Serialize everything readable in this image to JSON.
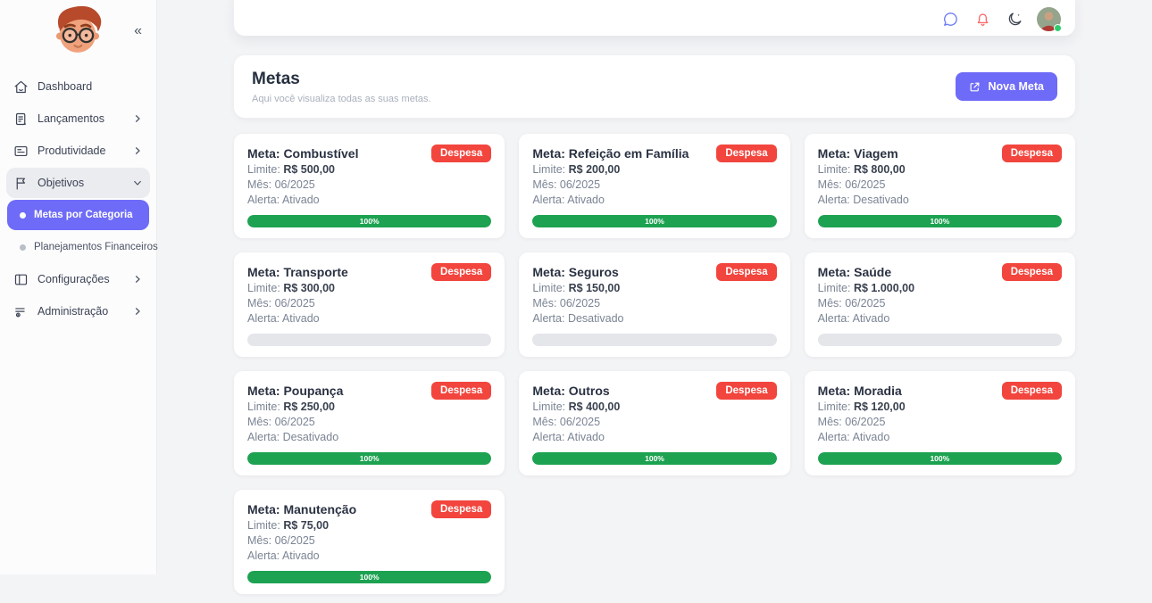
{
  "colors": {
    "accent": "#6e6bf8",
    "badge_red": "#f2453d",
    "progress_green": "#1da251",
    "progress_empty": "#e4e6ea"
  },
  "sidebar": {
    "collapse": "«",
    "items": [
      {
        "id": "dashboard",
        "label": "Dashboard",
        "icon": "home-icon"
      },
      {
        "id": "lancamentos",
        "label": "Lançamentos",
        "icon": "document-icon",
        "chevron": "right"
      },
      {
        "id": "produtividade",
        "label": "Produtividade",
        "icon": "card-icon",
        "chevron": "right"
      },
      {
        "id": "objetivos",
        "label": "Objetivos",
        "icon": "flag-icon",
        "chevron": "down",
        "expanded": true
      },
      {
        "id": "metas-por-categoria",
        "label": "Metas por Categoria",
        "sub": true,
        "active": true
      },
      {
        "id": "planejamentos-financeiros",
        "label": "Planejamentos Financeiros",
        "sub": true
      },
      {
        "id": "configuracoes",
        "label": "Configurações",
        "icon": "layout-icon",
        "chevron": "right"
      },
      {
        "id": "administracao",
        "label": "Administração",
        "icon": "admin-icon",
        "chevron": "right"
      }
    ]
  },
  "topbar": {
    "icons": [
      {
        "id": "chat",
        "name": "chat-icon"
      },
      {
        "id": "notifications",
        "name": "bell-icon"
      },
      {
        "id": "dark-mode",
        "name": "moon-icon"
      }
    ]
  },
  "header": {
    "title": "Metas",
    "subtitle": "Aqui você visualiza todas as suas metas.",
    "new_button": "Nova Meta"
  },
  "labels": {
    "limit": "Limite:",
    "month": "Mês:",
    "alert": "Alerta:"
  },
  "cards": [
    {
      "title": "Meta: Combustível",
      "badge": "Despesa",
      "limit": "R$ 500,00",
      "month": "06/2025",
      "alert": "Ativado",
      "progress": 100,
      "progress_label": "100%"
    },
    {
      "title": "Meta: Refeição em Família",
      "badge": "Despesa",
      "limit": "R$ 200,00",
      "month": "06/2025",
      "alert": "Ativado",
      "progress": 100,
      "progress_label": "100%"
    },
    {
      "title": "Meta: Viagem",
      "badge": "Despesa",
      "limit": "R$ 800,00",
      "month": "06/2025",
      "alert": "Desativado",
      "progress": 100,
      "progress_label": "100%"
    },
    {
      "title": "Meta: Transporte",
      "badge": "Despesa",
      "limit": "R$ 300,00",
      "month": "06/2025",
      "alert": "Ativado",
      "progress": 0,
      "progress_label": ""
    },
    {
      "title": "Meta: Seguros",
      "badge": "Despesa",
      "limit": "R$ 150,00",
      "month": "06/2025",
      "alert": "Desativado",
      "progress": 0,
      "progress_label": ""
    },
    {
      "title": "Meta: Saúde",
      "badge": "Despesa",
      "limit": "R$ 1.000,00",
      "month": "06/2025",
      "alert": "Ativado",
      "progress": 0,
      "progress_label": ""
    },
    {
      "title": "Meta: Poupança",
      "badge": "Despesa",
      "limit": "R$ 250,00",
      "month": "06/2025",
      "alert": "Desativado",
      "progress": 100,
      "progress_label": "100%"
    },
    {
      "title": "Meta: Outros",
      "badge": "Despesa",
      "limit": "R$ 400,00",
      "month": "06/2025",
      "alert": "Ativado",
      "progress": 100,
      "progress_label": "100%"
    },
    {
      "title": "Meta: Moradia",
      "badge": "Despesa",
      "limit": "R$ 120,00",
      "month": "06/2025",
      "alert": "Ativado",
      "progress": 100,
      "progress_label": "100%"
    },
    {
      "title": "Meta: Manutenção",
      "badge": "Despesa",
      "limit": "R$ 75,00",
      "month": "06/2025",
      "alert": "Ativado",
      "progress": 100,
      "progress_label": "100%"
    }
  ]
}
